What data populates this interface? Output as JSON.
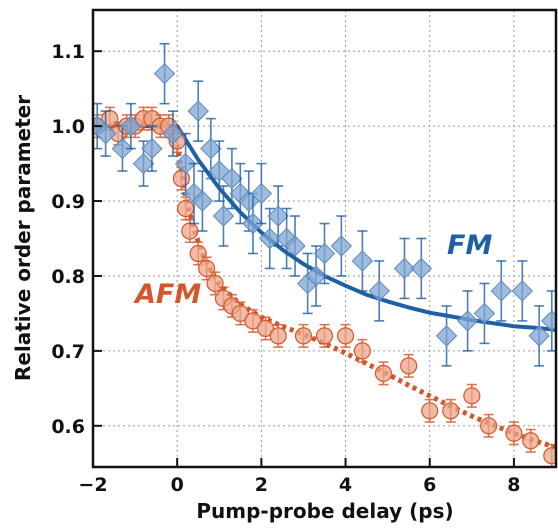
{
  "chart_data": {
    "type": "scatter",
    "xlabel": "Pump-probe delay (ps)",
    "ylabel": "Relative order parameter",
    "xlim": [
      -2,
      9
    ],
    "ylim": [
      0.545,
      1.155
    ],
    "x_ticks": [
      -2,
      0,
      2,
      4,
      6,
      8
    ],
    "x_tick_labels": [
      "−2",
      "0",
      "2",
      "4",
      "6",
      "8"
    ],
    "y_ticks": [
      0.6,
      0.7,
      0.8,
      0.9,
      1.0,
      1.1
    ],
    "y_tick_labels": [
      "0.6",
      "0.7",
      "0.8",
      "0.9",
      "1.0",
      "1.1"
    ],
    "grid": true,
    "series": [
      {
        "name": "FM",
        "color": "#1f5fa6",
        "marker": "diamond",
        "points": [
          {
            "x": -1.9,
            "y": 1.0,
            "err": 0.03
          },
          {
            "x": -1.7,
            "y": 0.99,
            "err": 0.03
          },
          {
            "x": -1.3,
            "y": 0.97,
            "err": 0.03
          },
          {
            "x": -1.1,
            "y": 1.0,
            "err": 0.03
          },
          {
            "x": -0.8,
            "y": 0.95,
            "err": 0.03
          },
          {
            "x": -0.6,
            "y": 0.97,
            "err": 0.03
          },
          {
            "x": -0.3,
            "y": 1.07,
            "err": 0.04
          },
          {
            "x": -0.1,
            "y": 0.99,
            "err": 0.03
          },
          {
            "x": 0.2,
            "y": 0.95,
            "err": 0.04
          },
          {
            "x": 0.4,
            "y": 0.91,
            "err": 0.04
          },
          {
            "x": 0.5,
            "y": 1.02,
            "err": 0.04
          },
          {
            "x": 0.6,
            "y": 0.9,
            "err": 0.04
          },
          {
            "x": 0.8,
            "y": 0.97,
            "err": 0.04
          },
          {
            "x": 1.0,
            "y": 0.94,
            "err": 0.04
          },
          {
            "x": 1.1,
            "y": 0.88,
            "err": 0.04
          },
          {
            "x": 1.3,
            "y": 0.93,
            "err": 0.04
          },
          {
            "x": 1.5,
            "y": 0.91,
            "err": 0.04
          },
          {
            "x": 1.7,
            "y": 0.9,
            "err": 0.04
          },
          {
            "x": 1.8,
            "y": 0.87,
            "err": 0.04
          },
          {
            "x": 2.0,
            "y": 0.91,
            "err": 0.04
          },
          {
            "x": 2.2,
            "y": 0.85,
            "err": 0.04
          },
          {
            "x": 2.4,
            "y": 0.88,
            "err": 0.04
          },
          {
            "x": 2.6,
            "y": 0.85,
            "err": 0.04
          },
          {
            "x": 2.8,
            "y": 0.84,
            "err": 0.04
          },
          {
            "x": 3.1,
            "y": 0.79,
            "err": 0.04
          },
          {
            "x": 3.3,
            "y": 0.8,
            "err": 0.04
          },
          {
            "x": 3.5,
            "y": 0.83,
            "err": 0.04
          },
          {
            "x": 3.9,
            "y": 0.84,
            "err": 0.04
          },
          {
            "x": 4.4,
            "y": 0.82,
            "err": 0.04
          },
          {
            "x": 4.8,
            "y": 0.78,
            "err": 0.04
          },
          {
            "x": 5.4,
            "y": 0.81,
            "err": 0.04
          },
          {
            "x": 5.8,
            "y": 0.81,
            "err": 0.04
          },
          {
            "x": 6.4,
            "y": 0.72,
            "err": 0.04
          },
          {
            "x": 6.9,
            "y": 0.74,
            "err": 0.04
          },
          {
            "x": 7.3,
            "y": 0.75,
            "err": 0.04
          },
          {
            "x": 7.7,
            "y": 0.78,
            "err": 0.04
          },
          {
            "x": 8.2,
            "y": 0.78,
            "err": 0.04
          },
          {
            "x": 8.6,
            "y": 0.72,
            "err": 0.04
          },
          {
            "x": 8.9,
            "y": 0.74,
            "err": 0.04
          }
        ],
        "fit_line": {
          "style": "solid",
          "x": [
            -2,
            -1,
            0,
            0.5,
            1,
            1.5,
            2,
            2.5,
            3,
            3.5,
            4,
            4.5,
            5,
            5.5,
            6,
            6.5,
            7,
            7.5,
            8,
            8.5,
            9
          ],
          "y": [
            1.0,
            1.0,
            1.0,
            0.955,
            0.917,
            0.885,
            0.858,
            0.835,
            0.816,
            0.8,
            0.787,
            0.775,
            0.766,
            0.758,
            0.751,
            0.746,
            0.741,
            0.737,
            0.733,
            0.731,
            0.728
          ]
        }
      },
      {
        "name": "AFM",
        "color": "#d4572b",
        "marker": "circle",
        "points": [
          {
            "x": -1.9,
            "y": 1.0,
            "err": 0.015
          },
          {
            "x": -1.6,
            "y": 1.01,
            "err": 0.015
          },
          {
            "x": -1.4,
            "y": 0.99,
            "err": 0.015
          },
          {
            "x": -1.2,
            "y": 1.0,
            "err": 0.015
          },
          {
            "x": -1.0,
            "y": 1.0,
            "err": 0.015
          },
          {
            "x": -0.8,
            "y": 1.01,
            "err": 0.015
          },
          {
            "x": -0.6,
            "y": 1.01,
            "err": 0.015
          },
          {
            "x": -0.4,
            "y": 1.0,
            "err": 0.015
          },
          {
            "x": -0.2,
            "y": 1.0,
            "err": 0.015
          },
          {
            "x": 0.0,
            "y": 0.98,
            "err": 0.015
          },
          {
            "x": 0.1,
            "y": 0.93,
            "err": 0.015
          },
          {
            "x": 0.2,
            "y": 0.89,
            "err": 0.015
          },
          {
            "x": 0.3,
            "y": 0.86,
            "err": 0.015
          },
          {
            "x": 0.5,
            "y": 0.83,
            "err": 0.015
          },
          {
            "x": 0.7,
            "y": 0.81,
            "err": 0.015
          },
          {
            "x": 0.9,
            "y": 0.79,
            "err": 0.015
          },
          {
            "x": 1.1,
            "y": 0.77,
            "err": 0.015
          },
          {
            "x": 1.3,
            "y": 0.76,
            "err": 0.015
          },
          {
            "x": 1.5,
            "y": 0.75,
            "err": 0.015
          },
          {
            "x": 1.8,
            "y": 0.74,
            "err": 0.015
          },
          {
            "x": 2.1,
            "y": 0.73,
            "err": 0.015
          },
          {
            "x": 2.4,
            "y": 0.72,
            "err": 0.015
          },
          {
            "x": 3.0,
            "y": 0.72,
            "err": 0.015
          },
          {
            "x": 3.5,
            "y": 0.72,
            "err": 0.015
          },
          {
            "x": 4.0,
            "y": 0.72,
            "err": 0.015
          },
          {
            "x": 4.4,
            "y": 0.7,
            "err": 0.015
          },
          {
            "x": 4.9,
            "y": 0.67,
            "err": 0.015
          },
          {
            "x": 5.5,
            "y": 0.68,
            "err": 0.015
          },
          {
            "x": 6.0,
            "y": 0.62,
            "err": 0.015
          },
          {
            "x": 6.5,
            "y": 0.62,
            "err": 0.015
          },
          {
            "x": 7.0,
            "y": 0.64,
            "err": 0.015
          },
          {
            "x": 7.4,
            "y": 0.6,
            "err": 0.015
          },
          {
            "x": 8.0,
            "y": 0.59,
            "err": 0.015
          },
          {
            "x": 8.4,
            "y": 0.58,
            "err": 0.015
          },
          {
            "x": 8.9,
            "y": 0.56,
            "err": 0.015
          }
        ],
        "fit_line": {
          "style": "dotted",
          "x": [
            -2,
            -1,
            -0.2,
            0,
            0.2,
            0.4,
            0.6,
            0.8,
            1,
            1.5,
            2,
            2.5,
            3,
            3.5,
            4,
            4.5,
            5,
            5.5,
            6,
            6.5,
            7,
            7.5,
            8,
            8.5,
            9
          ],
          "y": [
            1.0,
            1.0,
            1.0,
            0.975,
            0.905,
            0.862,
            0.83,
            0.807,
            0.788,
            0.762,
            0.745,
            0.733,
            0.722,
            0.71,
            0.697,
            0.683,
            0.669,
            0.654,
            0.64,
            0.626,
            0.613,
            0.601,
            0.59,
            0.58,
            0.571
          ]
        }
      }
    ]
  }
}
